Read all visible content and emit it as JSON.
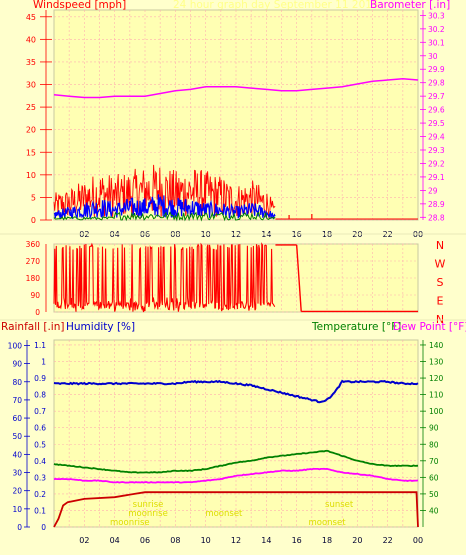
{
  "header": {
    "left_title": "Windspeed [mph]",
    "center_title": "24 hour graph day    September 11 2015",
    "right_title": "Barometer [.in]"
  },
  "colors": {
    "background": "#ffffcc",
    "plot_area": "#ffffb3",
    "grid": "#ffb0b0",
    "wind_avg": "#ff0000",
    "wind_gust": "#0000ff",
    "wind_green": "#008000",
    "barometer": "#ff00ff",
    "direction": "#ff0000",
    "rainfall": "#cc0000",
    "humidity": "#0000cc",
    "temperature": "#008000",
    "dewpoint": "#ff00ff",
    "sun_text": "#dddd00"
  },
  "chart_data": [
    {
      "type": "line",
      "name": "wind-barometer",
      "title": "24 hour graph day    September 11 2015",
      "ylabel_left": "Windspeed [mph]",
      "ylabel_right": "Barometer [.in]",
      "x_ticks": [
        "02",
        "04",
        "06",
        "08",
        "10",
        "12",
        "14",
        "16",
        "18",
        "20",
        "22",
        "00"
      ],
      "y_left_ticks": [
        "45",
        "40",
        "35",
        "30",
        "25",
        "20",
        "15",
        "10",
        "5",
        "0"
      ],
      "y_right_ticks": [
        "30.3",
        "30.2",
        "30.1",
        "30",
        "29.9",
        "29.8",
        "29.7",
        "29.6",
        "29.5",
        "29.4",
        "29.3",
        "29.2",
        "29.1",
        "29",
        "28.9",
        "28.8"
      ],
      "ylim_left": [
        0,
        46.5
      ],
      "ylim_right": [
        28.78,
        30.34
      ],
      "xlim": [
        0,
        24
      ],
      "barometer_series": {
        "x": [
          0,
          1,
          2,
          3,
          4,
          5,
          6,
          7,
          8,
          9,
          10,
          11,
          12,
          13,
          14,
          15,
          16,
          17,
          18,
          19,
          20,
          21,
          22,
          23,
          24
        ],
        "values": [
          29.71,
          29.7,
          29.69,
          29.69,
          29.7,
          29.7,
          29.7,
          29.72,
          29.74,
          29.75,
          29.77,
          29.77,
          29.77,
          29.76,
          29.75,
          29.74,
          29.74,
          29.75,
          29.76,
          29.77,
          29.79,
          29.81,
          29.82,
          29.83,
          29.82
        ]
      },
      "wind_avg_envelope": {
        "x": [
          0,
          1,
          2,
          3,
          4,
          5,
          6,
          7,
          8,
          9,
          10,
          11,
          12,
          13,
          14,
          14.6
        ],
        "values": [
          6,
          7,
          9,
          11,
          10,
          11,
          12,
          13,
          11,
          12,
          11,
          10,
          8,
          9,
          7,
          3
        ]
      },
      "wind_gust_envelope": {
        "x": [
          0,
          1,
          2,
          3,
          4,
          5,
          6,
          7,
          8,
          9,
          10,
          11,
          12,
          13,
          14,
          14.6
        ],
        "values": [
          2,
          3,
          4,
          5,
          4,
          5,
          5,
          6,
          5,
          5,
          4,
          4,
          3,
          4,
          3,
          1
        ]
      }
    },
    {
      "type": "line",
      "name": "wind-direction",
      "ylabel_right": "N W S E N",
      "compass": [
        "N",
        "W",
        "S",
        "E",
        "N"
      ],
      "y_ticks": [
        "360",
        "270",
        "180",
        "90",
        "0"
      ],
      "ylim": [
        0,
        360
      ],
      "xlim": [
        0,
        24
      ],
      "steady_segments": [
        {
          "x": [
            14.6,
            16.0
          ],
          "values": [
            355,
            355
          ]
        },
        {
          "x": [
            16.3,
            24.0
          ],
          "values": [
            3,
            3
          ]
        }
      ]
    },
    {
      "type": "line",
      "name": "rain-humidity-temperature",
      "legend": [
        "Rainfall [.in]",
        "Humidity [%]",
        "Temperature [°F]",
        "Dew Point [°F]"
      ],
      "y_humidity_ticks": [
        "100",
        "90",
        "80",
        "70",
        "60",
        "50",
        "40",
        "30",
        "20",
        "10",
        "0"
      ],
      "y_rain_ticks": [
        "1.1",
        "1",
        "0.9",
        "0.8",
        "0.7",
        "0.6",
        "0.5",
        "0.4",
        "0.3",
        "0.2",
        "0.1",
        "0"
      ],
      "y_temp_ticks": [
        "140",
        "130",
        "120",
        "110",
        "100",
        "90",
        "80",
        "70",
        "60",
        "50",
        "40"
      ],
      "x_ticks": [
        "02",
        "04",
        "06",
        "08",
        "10",
        "12",
        "14",
        "16",
        "18",
        "20",
        "22",
        "00"
      ],
      "ylim_humidity": [
        0,
        103
      ],
      "ylim_rain": [
        0,
        1.13
      ],
      "ylim_temp": [
        30,
        143
      ],
      "xlim": [
        0,
        24
      ],
      "humidity": {
        "x": [
          0,
          2,
          4,
          6,
          8,
          9,
          10,
          11,
          12,
          13,
          14,
          15,
          16,
          17,
          17.5,
          18,
          18.5,
          19,
          20,
          22,
          23,
          24
        ],
        "values": [
          79,
          79,
          79,
          79,
          79,
          80,
          80,
          80,
          79,
          78,
          76,
          74,
          72,
          70,
          69,
          70,
          74,
          80,
          80,
          80,
          79,
          79
        ]
      },
      "temperature": {
        "x": [
          0,
          1,
          2,
          3,
          4,
          5,
          6,
          7,
          8,
          9,
          10,
          11,
          12,
          13,
          14,
          15,
          16,
          17,
          18,
          19,
          20,
          21,
          22,
          23,
          24
        ],
        "values": [
          68,
          67,
          66,
          65,
          64,
          63,
          63,
          63,
          64,
          64,
          65,
          67,
          69,
          70,
          72,
          73,
          74,
          75,
          76,
          73,
          70,
          68,
          67,
          67,
          67
        ]
      },
      "dewpoint": {
        "x": [
          0,
          1,
          2,
          3,
          4,
          5,
          6,
          7,
          8,
          9,
          10,
          11,
          12,
          13,
          14,
          15,
          16,
          17,
          18,
          19,
          20,
          21,
          22,
          23,
          24
        ],
        "values": [
          59,
          59,
          58,
          58,
          57,
          57,
          57,
          57,
          57,
          57,
          58,
          59,
          61,
          62,
          63,
          64,
          64,
          65,
          65,
          63,
          62,
          61,
          59,
          58,
          58
        ]
      },
      "rainfall": {
        "x": [
          0,
          0.3,
          0.6,
          0.9,
          2,
          4,
          5.3,
          6,
          8,
          10,
          12,
          14,
          16,
          18,
          20,
          22,
          23.9,
          24
        ],
        "values": [
          0,
          0.05,
          0.13,
          0.15,
          0.17,
          0.18,
          0.2,
          0.21,
          0.21,
          0.21,
          0.21,
          0.21,
          0.21,
          0.21,
          0.21,
          0.21,
          0.21,
          0
        ]
      },
      "annotations": [
        {
          "text": "sunrise",
          "x": 6.2,
          "row": 1
        },
        {
          "text": "moonrise",
          "x": 6.2,
          "row": 2
        },
        {
          "text": "moonrise",
          "x": 5.0,
          "row": 3
        },
        {
          "text": "moonset",
          "x": 11.2,
          "row": 2
        },
        {
          "text": "sunset",
          "x": 18.8,
          "row": 1
        },
        {
          "text": "moonset",
          "x": 18.0,
          "row": 3
        }
      ]
    }
  ]
}
